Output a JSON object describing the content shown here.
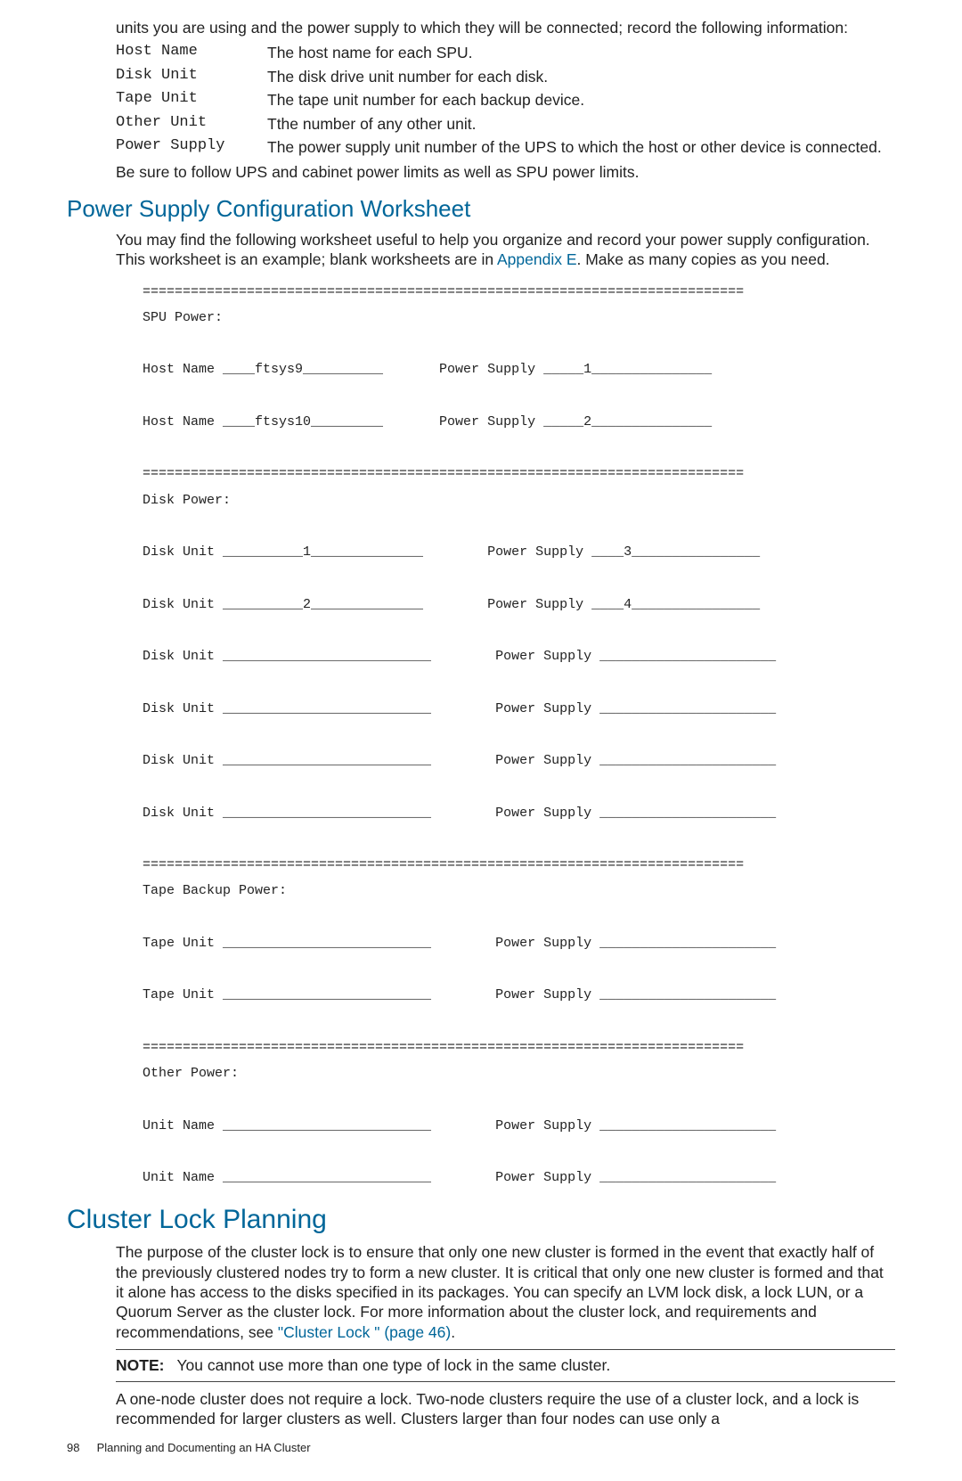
{
  "intro": {
    "lead_text": "units you are using and the power supply to which they will be connected; record the following information:",
    "defs": {
      "host_name_term": "Host Name",
      "host_name_desc": "The host name for each SPU.",
      "disk_unit_term": "Disk Unit",
      "disk_unit_desc": "The disk drive unit number for each disk.",
      "tape_unit_term": "Tape Unit",
      "tape_unit_desc": "The tape unit number for each backup device.",
      "other_unit_term": "Other Unit",
      "other_unit_desc": "Tthe number of any other unit.",
      "power_supply_term": "Power Supply",
      "power_supply_desc": "The power supply unit number of the UPS to which the host or other device is connected."
    },
    "closing_text": "Be sure to follow UPS and cabinet power limits as well as SPU power limits."
  },
  "worksheet_section": {
    "heading": "Power Supply Configuration Worksheet",
    "para_before_link": "You may find the following worksheet useful to help you organize and record your power supply configuration. This worksheet is an example; blank worksheets are in ",
    "link_text": "Appendix E",
    "para_after_link": ". Make as many copies as you need.",
    "pre_text": "===========================================================================\nSPU Power:\n\nHost Name ____ftsys9__________       Power Supply _____1_______________\n\nHost Name ____ftsys10_________       Power Supply _____2_______________\n\n===========================================================================\nDisk Power:\n\nDisk Unit __________1______________        Power Supply ____3________________\n\nDisk Unit __________2______________        Power Supply ____4________________\n\nDisk Unit __________________________        Power Supply ______________________\n\nDisk Unit __________________________        Power Supply ______________________\n\nDisk Unit __________________________        Power Supply ______________________\n\nDisk Unit __________________________        Power Supply ______________________\n\n===========================================================================\nTape Backup Power:\n\nTape Unit __________________________        Power Supply ______________________\n\nTape Unit __________________________        Power Supply ______________________\n\n===========================================================================\nOther Power:\n\nUnit Name __________________________        Power Supply ______________________\n\nUnit Name __________________________        Power Supply ______________________"
  },
  "cluster_section": {
    "heading": "Cluster Lock Planning",
    "para_before_link": "The purpose of the cluster lock is to ensure that only one new cluster is formed in the event that exactly half of the previously clustered nodes try to form a new cluster. It is critical that only one new cluster is formed and that it alone has access to the disks specified in its packages. You can specify an LVM lock disk, a lock LUN, or a Quorum Server as the cluster lock. For more information about the cluster lock, and requirements and recommendations, see ",
    "link_text": "\"Cluster Lock \" (page 46)",
    "para_after_link": ".",
    "note_label": "NOTE:",
    "note_text": "You cannot use more than one type of lock in the same cluster.",
    "tail_text": "A one-node cluster does not require a lock. Two-node clusters require the use of a cluster lock, and a lock is recommended for larger clusters as well. Clusters larger than four nodes can use only a"
  },
  "footer": {
    "page_number": "98",
    "title": "Planning and Documenting an HA Cluster"
  }
}
